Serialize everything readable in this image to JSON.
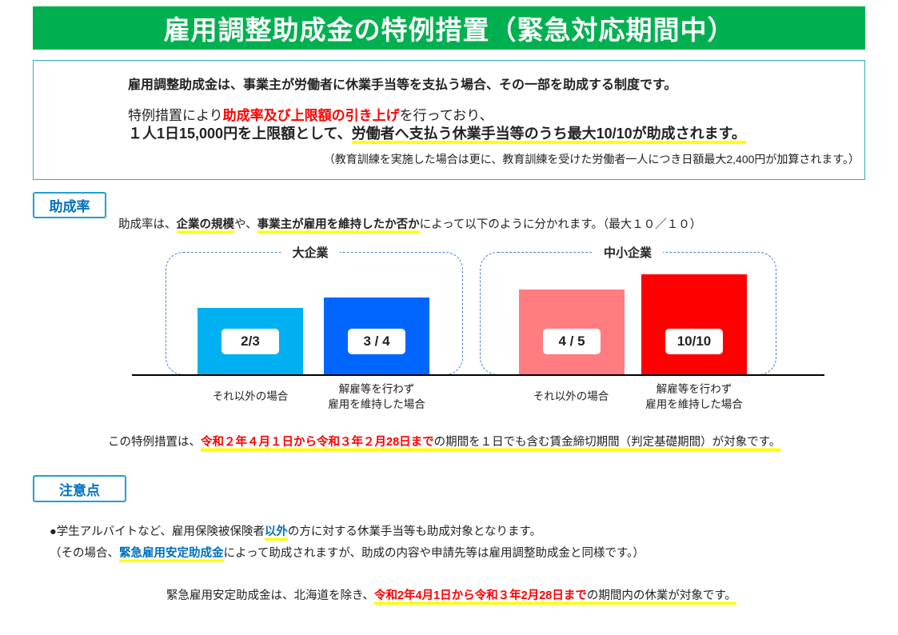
{
  "title": "雇用調整助成金の特例措置（緊急対応期間中）",
  "info": {
    "line1": "雇用調整助成金は、事業主が労働者に休業手当等を支払う場合、その一部を助成する制度です。",
    "line2_a": "特例措置により",
    "line2_red": "助成率及び上限額の引き上げ",
    "line2_b": "を行っており、",
    "line3_a": "１人1日15,000円を上限額として、",
    "line3_hl": "労働者へ支払う休業手当等のうち最大10/10が助成されます。",
    "line4": "（教育訓練を実施した場合は更に、教育訓練を受けた労働者一人につき日額最大2,400円が加算されます。）"
  },
  "rate_section": {
    "tab": "助成率",
    "desc_a": "助成率は、",
    "desc_hl1": "企業の規模",
    "desc_b": "や、",
    "desc_hl2": "事業主が雇用を維持したか否か",
    "desc_c": "によって以下のように分かれます。（最大１０／１０）",
    "groups": [
      {
        "label": "大企業"
      },
      {
        "label": "中小企業"
      }
    ],
    "bars": [
      {
        "label": "2/3",
        "value": 0.667,
        "category": "それ以外の場合",
        "color": "#00b0f0"
      },
      {
        "label": "3 / 4",
        "value": 0.75,
        "category": "解雇等を行わず\n雇用を維持した場合",
        "color": "#0066ff"
      },
      {
        "label": "4 / 5",
        "value": 0.8,
        "category": "それ以外の場合",
        "color": "#ff7c80"
      },
      {
        "label": "10/10",
        "value": 1.0,
        "category": "解雇等を行わず\n雇用を維持した場合",
        "color": "#ff0000"
      }
    ],
    "cat_lines": {
      "a1": "それ以外の場合",
      "b1": "解雇等を行わず",
      "b2": "雇用を維持した場合"
    },
    "period_a": "この特例措置は、",
    "period_red": "令和２年４月１日から令和３年２月28日まで",
    "period_b": "の期間を１日でも含む賃金締切期間（判定基礎期間）が対象です。"
  },
  "notes": {
    "tab": "注意点",
    "bullet_a": "●学生アルバイトなど、雇用保険被保険者",
    "bullet_blue": "以外",
    "bullet_b": "の方に対する休業手当等も助成対象となります。",
    "paren_a": "（その場合、",
    "paren_blue": "緊急雇用安定助成金",
    "paren_b": "によって助成されますが、助成の内容や申請先等は雇用調整助成金と同様です。）",
    "last_a": "緊急雇用安定助成金は、北海道を除き、",
    "last_red": "令和2年4月1日から令和３年2月28日まで",
    "last_b": "の期間内の休業が対象です。"
  }
}
